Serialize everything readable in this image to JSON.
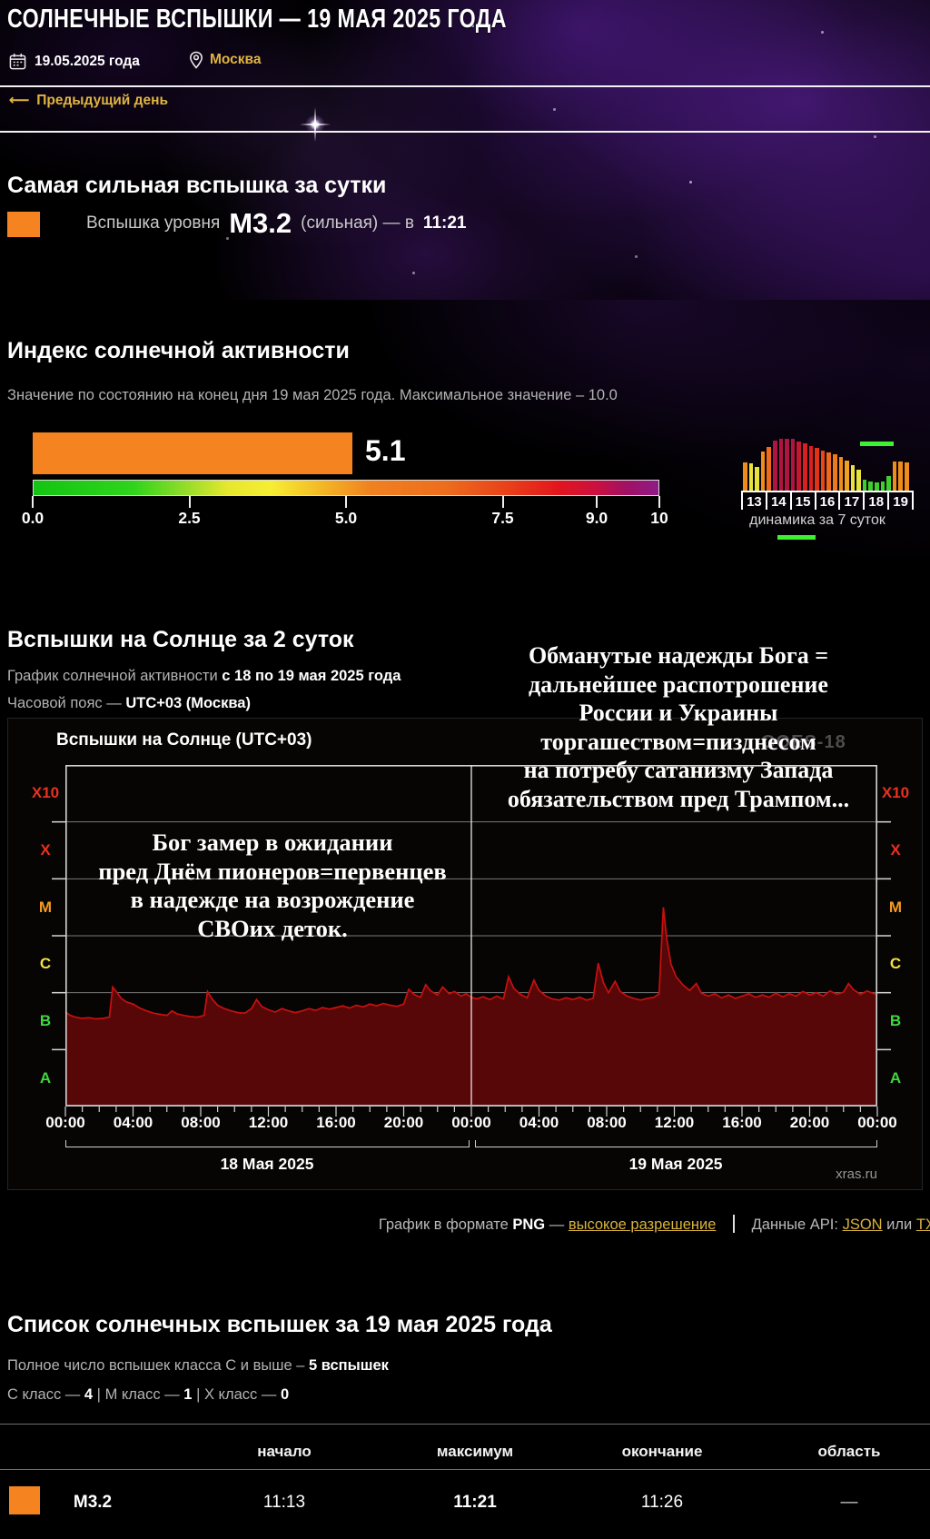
{
  "page": {
    "title": "СОЛНЕЧНЫЕ ВСПЫШКИ — 19 МАЯ 2025 ГОДА",
    "date": "19.05.2025 года",
    "location": "Москва",
    "prev_day": "Предыдущий день",
    "icons": {
      "left_arrow": "⟵"
    }
  },
  "strongest": {
    "heading": "Самая сильная вспышка за сутки",
    "prefix": "Вспышка уровня",
    "level": "M3.2",
    "middle": "(сильная) — в",
    "time": "11:21",
    "swatch_color": "#f5831f"
  },
  "activity_index": {
    "heading": "Индекс солнечной активности",
    "subtitle": "Значение по состоянию на конец дня 19 мая 2025 года. Максимальное значение – 10.0",
    "value": "5.1",
    "value_num": 5.1,
    "max": 10,
    "bar_color": "#f5831f",
    "tick_labels": [
      "0.0",
      "2.5",
      "5.0",
      "7.5",
      "9.0",
      "10"
    ],
    "tick_values": [
      0,
      2.5,
      5,
      7.5,
      9,
      10
    ]
  },
  "mini_chart": {
    "caption": "динамика за 7 суток",
    "days": [
      "13",
      "14",
      "15",
      "16",
      "17",
      "18",
      "19"
    ],
    "marker_color": "#3cf032"
  },
  "flare_section": {
    "heading": "Вспышки на Солнце за 2 суток",
    "subtitle_prefix": "График солнечной активности",
    "subtitle_bold": "с 18 по 19 мая 2025 года",
    "tz_prefix": "Часовой пояс —",
    "tz_bold": "UTC+03 (Москва)",
    "panel_title": "Вспышки на Солнце (UTC+03)",
    "satellite": "GOES-18",
    "watermark": "xras.ru",
    "day_left": "18 Мая 2025",
    "day_right": "19 Мая 2025"
  },
  "overlays": {
    "right": {
      "lines": [
        "Обманутые надежды Бога =",
        "дальнейшее распотрошение",
        "России и Украины",
        "торгашеством=пизднесом",
        "на потребу сатанизму Запада",
        "обязательством пред Трампом..."
      ]
    },
    "left": {
      "lines": [
        "Бог замер в ожидании",
        "пред Днём пионеров=первенцев",
        "в надежде на возрождение",
        "СВОих деток."
      ]
    }
  },
  "downloads": {
    "prefix": "График в формате",
    "format": "PNG",
    "dash": "—",
    "hires_link": "высокое разрешение",
    "api_prefix": "Данные API:",
    "json_link": "JSON",
    "or": "или",
    "txt_link": "TXT"
  },
  "flare_list": {
    "heading": "Список солнечных вспышек за 19 мая 2025 года",
    "total_prefix": "Полное число вспышек класса C и выше –",
    "total_bold": "5 вспышек",
    "counts": {
      "c_label": "C класс —",
      "c_value": "4",
      "sep1": "|",
      "m_label": "M класс —",
      "m_value": "1",
      "sep2": "|",
      "x_label": "X класс —",
      "x_value": "0"
    },
    "table": {
      "headers": [
        "начало",
        "максимум",
        "окончание",
        "область"
      ],
      "rows": [
        {
          "level": "M3.2",
          "color": "#f5831f",
          "start": "11:13",
          "max": "11:21",
          "end": "11:26",
          "region": "—"
        }
      ]
    }
  },
  "chart_data": [
    {
      "type": "area",
      "title": "Вспышки на Солнце (UTC+03)",
      "satellite": "GOES-18",
      "x_range_hours": [
        0,
        48
      ],
      "x_tick_labels": [
        "00:00",
        "04:00",
        "08:00",
        "12:00",
        "16:00",
        "20:00",
        "00:00",
        "04:00",
        "08:00",
        "12:00",
        "16:00",
        "20:00",
        "00:00"
      ],
      "x_days": [
        "18 Мая 2025",
        "19 Мая 2025"
      ],
      "y_bands": [
        {
          "label": "X10",
          "color": "#e8321e"
        },
        {
          "label": "X",
          "color": "#e8321e"
        },
        {
          "label": "M",
          "color": "#f59a1e"
        },
        {
          "label": "C",
          "color": "#f0e43c"
        },
        {
          "label": "B",
          "color": "#3fd83f"
        },
        {
          "label": "A",
          "color": "#3fd83f"
        }
      ],
      "y_scale": "level = band_index + log10(magnitude); bands A..X10 bottom to top",
      "line_color": "#c81010",
      "fill_color": "#570707",
      "grid_color": "#7a7a7a",
      "events": [
        {
          "class": "M3.2",
          "start": "11:13",
          "max": "11:21",
          "end": "11:26",
          "date": "19 мая 2025"
        }
      ],
      "points": [
        [
          0,
          1.66
        ],
        [
          0.3,
          1.6
        ],
        [
          0.6,
          1.57
        ],
        [
          1,
          1.55
        ],
        [
          1.4,
          1.56
        ],
        [
          1.8,
          1.54
        ],
        [
          2.2,
          1.55
        ],
        [
          2.6,
          1.57
        ],
        [
          2.8,
          2.1
        ],
        [
          3,
          2.02
        ],
        [
          3.3,
          1.9
        ],
        [
          3.6,
          1.84
        ],
        [
          4,
          1.8
        ],
        [
          4.4,
          1.73
        ],
        [
          4.8,
          1.68
        ],
        [
          5.2,
          1.64
        ],
        [
          5.6,
          1.62
        ],
        [
          6,
          1.6
        ],
        [
          6.3,
          1.68
        ],
        [
          6.6,
          1.63
        ],
        [
          7,
          1.6
        ],
        [
          7.4,
          1.58
        ],
        [
          7.8,
          1.57
        ],
        [
          8.2,
          1.6
        ],
        [
          8.4,
          2.02
        ],
        [
          8.7,
          1.88
        ],
        [
          9,
          1.78
        ],
        [
          9.4,
          1.72
        ],
        [
          9.8,
          1.68
        ],
        [
          10.2,
          1.65
        ],
        [
          10.6,
          1.64
        ],
        [
          11,
          1.72
        ],
        [
          11.3,
          1.88
        ],
        [
          11.6,
          1.76
        ],
        [
          12,
          1.7
        ],
        [
          12.4,
          1.66
        ],
        [
          12.8,
          1.72
        ],
        [
          13.2,
          1.68
        ],
        [
          13.6,
          1.65
        ],
        [
          14,
          1.68
        ],
        [
          14.4,
          1.72
        ],
        [
          14.8,
          1.69
        ],
        [
          15.2,
          1.74
        ],
        [
          15.6,
          1.71
        ],
        [
          16,
          1.74
        ],
        [
          16.4,
          1.77
        ],
        [
          16.8,
          1.73
        ],
        [
          17.2,
          1.78
        ],
        [
          17.6,
          1.75
        ],
        [
          18,
          1.8
        ],
        [
          18.4,
          1.77
        ],
        [
          18.8,
          1.81
        ],
        [
          19.2,
          1.78
        ],
        [
          19.6,
          1.76
        ],
        [
          20,
          1.8
        ],
        [
          20.3,
          2.06
        ],
        [
          20.6,
          1.97
        ],
        [
          21,
          1.92
        ],
        [
          21.3,
          2.14
        ],
        [
          21.6,
          2.03
        ],
        [
          22,
          1.96
        ],
        [
          22.3,
          2.1
        ],
        [
          22.7,
          1.98
        ],
        [
          23,
          2.02
        ],
        [
          23.4,
          1.94
        ],
        [
          23.7,
          1.98
        ],
        [
          24,
          1.92
        ],
        [
          24.3,
          1.89
        ],
        [
          24.7,
          1.93
        ],
        [
          25.1,
          1.88
        ],
        [
          25.5,
          1.94
        ],
        [
          25.9,
          1.89
        ],
        [
          26.2,
          2.28
        ],
        [
          26.5,
          2.08
        ],
        [
          26.9,
          1.97
        ],
        [
          27.3,
          1.91
        ],
        [
          27.7,
          2.22
        ],
        [
          28,
          2.04
        ],
        [
          28.4,
          1.94
        ],
        [
          28.8,
          1.89
        ],
        [
          29.2,
          1.87
        ],
        [
          29.6,
          1.91
        ],
        [
          30,
          1.88
        ],
        [
          30.4,
          1.92
        ],
        [
          30.8,
          1.87
        ],
        [
          31.2,
          1.9
        ],
        [
          31.5,
          2.52
        ],
        [
          31.8,
          2.18
        ],
        [
          32.1,
          2
        ],
        [
          32.5,
          2.2
        ],
        [
          32.8,
          2.02
        ],
        [
          33.2,
          1.94
        ],
        [
          33.6,
          1.9
        ],
        [
          34,
          1.87
        ],
        [
          34.4,
          1.9
        ],
        [
          34.8,
          1.92
        ],
        [
          35.1,
          1.98
        ],
        [
          35.35,
          3.5
        ],
        [
          35.55,
          2.95
        ],
        [
          35.8,
          2.5
        ],
        [
          36.1,
          2.28
        ],
        [
          36.5,
          2.14
        ],
        [
          36.9,
          2.04
        ],
        [
          37.3,
          2.16
        ],
        [
          37.6,
          1.99
        ],
        [
          38,
          1.94
        ],
        [
          38.4,
          1.98
        ],
        [
          38.8,
          1.91
        ],
        [
          39.2,
          1.96
        ],
        [
          39.6,
          1.9
        ],
        [
          40,
          1.94
        ],
        [
          40.4,
          1.98
        ],
        [
          40.8,
          1.92
        ],
        [
          41.2,
          1.96
        ],
        [
          41.6,
          1.92
        ],
        [
          42,
          1.99
        ],
        [
          42.4,
          1.93
        ],
        [
          42.8,
          1.98
        ],
        [
          43.2,
          1.94
        ],
        [
          43.6,
          2.02
        ],
        [
          44,
          1.96
        ],
        [
          44.4,
          2
        ],
        [
          44.8,
          1.94
        ],
        [
          45.2,
          2.03
        ],
        [
          45.6,
          1.97
        ],
        [
          46,
          2.01
        ],
        [
          46.3,
          2.16
        ],
        [
          46.6,
          2.05
        ],
        [
          47,
          1.97
        ],
        [
          47.4,
          2.03
        ],
        [
          47.8,
          1.98
        ],
        [
          48,
          1.99
        ]
      ]
    },
    {
      "type": "bar",
      "name": "динамика за 7 суток",
      "day_labels": [
        "13",
        "14",
        "15",
        "16",
        "17",
        "18",
        "19"
      ],
      "bars": [
        {
          "day": "13",
          "v": 0.52,
          "color": "#ef8c1a"
        },
        {
          "day": "13",
          "v": 0.5,
          "color": "#e8e23a"
        },
        {
          "day": "13",
          "v": 0.44,
          "color": "#e8e23a"
        },
        {
          "day": "13",
          "v": 0.72,
          "color": "#ef8c1a"
        },
        {
          "day": "14",
          "v": 0.8,
          "color": "#ef6a1a"
        },
        {
          "day": "14",
          "v": 0.92,
          "color": "#b01540"
        },
        {
          "day": "14",
          "v": 0.95,
          "color": "#b01540"
        },
        {
          "day": "14",
          "v": 0.95,
          "color": "#b01540"
        },
        {
          "day": "15",
          "v": 0.95,
          "color": "#b01540"
        },
        {
          "day": "15",
          "v": 0.9,
          "color": "#c41830"
        },
        {
          "day": "15",
          "v": 0.86,
          "color": "#d92020"
        },
        {
          "day": "15",
          "v": 0.82,
          "color": "#d92020"
        },
        {
          "day": "16",
          "v": 0.78,
          "color": "#e03318"
        },
        {
          "day": "16",
          "v": 0.74,
          "color": "#e84818"
        },
        {
          "day": "16",
          "v": 0.7,
          "color": "#ef6a1a"
        },
        {
          "day": "16",
          "v": 0.66,
          "color": "#ef7a1a"
        },
        {
          "day": "17",
          "v": 0.62,
          "color": "#ef8c1a"
        },
        {
          "day": "17",
          "v": 0.55,
          "color": "#f0a21e"
        },
        {
          "day": "17",
          "v": 0.46,
          "color": "#e8e23a"
        },
        {
          "day": "17",
          "v": 0.38,
          "color": "#e8e23a"
        },
        {
          "day": "18",
          "v": 0.2,
          "color": "#3ecf2e"
        },
        {
          "day": "18",
          "v": 0.16,
          "color": "#3ecf2e"
        },
        {
          "day": "18",
          "v": 0.15,
          "color": "#3ecf2e"
        },
        {
          "day": "18",
          "v": 0.17,
          "color": "#3ecf2e"
        },
        {
          "day": "19",
          "v": 0.27,
          "color": "#3ecf2e"
        },
        {
          "day": "19",
          "v": 0.54,
          "color": "#ef8c1a"
        },
        {
          "day": "19",
          "v": 0.54,
          "color": "#ef8c1a"
        },
        {
          "day": "19",
          "v": 0.52,
          "color": "#ef8c1a"
        }
      ]
    }
  ]
}
